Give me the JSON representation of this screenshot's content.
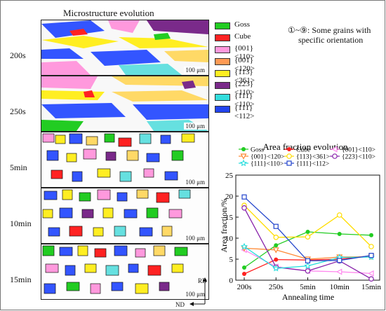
{
  "micro": {
    "title": "Microstructure evolution",
    "rows": [
      "200s",
      "250s",
      "5min",
      "10min",
      "15min"
    ],
    "scale": "100 μm",
    "rd": "RD",
    "nd": "ND"
  },
  "orientation_legend": [
    {
      "label": "Goss",
      "color": "#22cc22"
    },
    {
      "label": "Cube",
      "color": "#ff2222"
    },
    {
      "label": "{001}<110>",
      "color": "#ff99dd"
    },
    {
      "label": "{001}<120>",
      "color": "#ff9a55"
    },
    {
      "label": "{113}<361>",
      "color": "#ffee22"
    },
    {
      "label": "{223}<110>",
      "color": "#7a2a8a"
    },
    {
      "label": "{111}<110>",
      "color": "#33dddd"
    },
    {
      "label": "{111}<112>",
      "color": "#2244ee"
    }
  ],
  "grains_note": {
    "line1": "①~⑨: Some grains with",
    "line2": "specific orientation"
  },
  "chart_data": {
    "type": "line",
    "title": "Area fraction evolution",
    "xlabel": "Annealing time",
    "ylabel": "Area fraction/%",
    "categories": [
      "200s",
      "250s",
      "5min",
      "10min",
      "15min"
    ],
    "ylim": [
      0,
      25
    ],
    "yticks": [
      0,
      5,
      10,
      15,
      20,
      25
    ],
    "grid": false,
    "legend_position": "top",
    "series": [
      {
        "name": "Goss",
        "color": "#22cc22",
        "marker": "circle-filled",
        "values": [
          3.0,
          8.3,
          11.5,
          11.0,
          10.7
        ]
      },
      {
        "name": "Cube",
        "color": "#ff2222",
        "marker": "circle-filled",
        "values": [
          1.5,
          4.9,
          4.8,
          5.0,
          5.8
        ]
      },
      {
        "name": "{001}<110>",
        "color": "#ff88ee",
        "marker": "triangle-left",
        "values": [
          7.2,
          3.2,
          2.2,
          2.0,
          1.6
        ]
      },
      {
        "name": "{001}<120>",
        "color": "#ff8833",
        "marker": "triangle-down",
        "values": [
          7.6,
          7.2,
          5.0,
          5.5,
          5.6
        ]
      },
      {
        "name": "{113}<361>",
        "color": "#ffdd00",
        "marker": "circle-open",
        "values": [
          17.8,
          10.2,
          10.3,
          15.5,
          8.0
        ]
      },
      {
        "name": "{223}<110>",
        "color": "#8822aa",
        "marker": "circle-open",
        "values": [
          17.2,
          3.1,
          2.2,
          4.6,
          0.3
        ]
      },
      {
        "name": "{111}<110>",
        "color": "#22dddd",
        "marker": "star",
        "values": [
          8.0,
          2.8,
          3.4,
          5.4,
          5.5
        ]
      },
      {
        "name": "{111}<112>",
        "color": "#2244cc",
        "marker": "square-open",
        "values": [
          19.8,
          12.8,
          4.6,
          4.7,
          5.9
        ]
      }
    ]
  }
}
